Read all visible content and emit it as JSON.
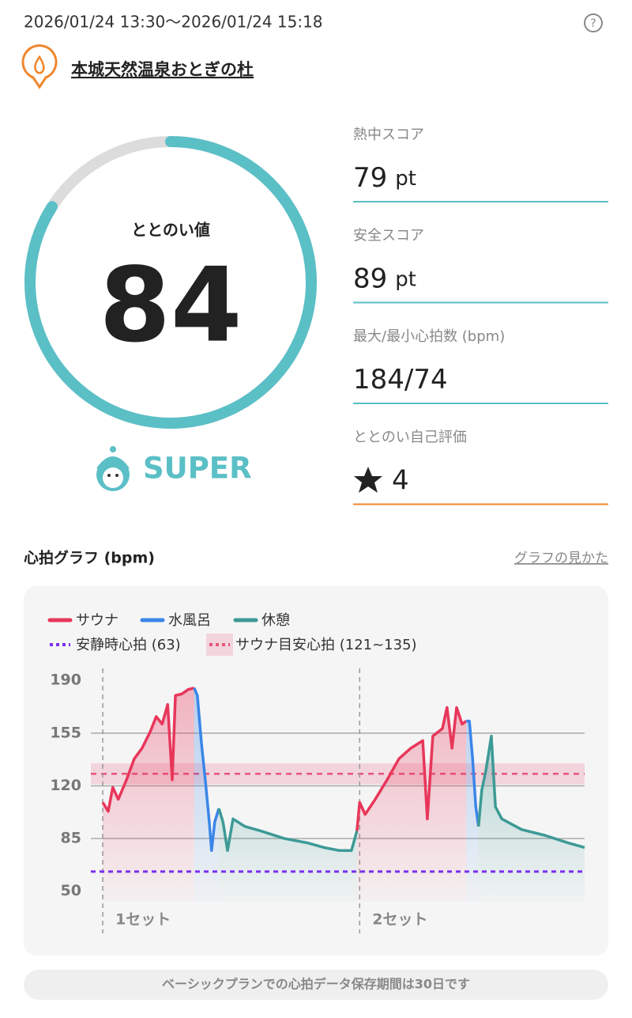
{
  "header": {
    "period": "2026/01/24 13:30〜2026/01/24 15:18",
    "place": "本城天然温泉おとぎの杜"
  },
  "gauge": {
    "label": "ととのい値",
    "value": 84,
    "rank": "SUPER"
  },
  "scores": [
    {
      "label": "熱中スコア",
      "value": 79,
      "unit": "pt"
    },
    {
      "label": "安全スコア",
      "value": 89,
      "unit": "pt"
    },
    {
      "label": "最大/最小心拍数 (bpm)",
      "value": "184/74"
    },
    {
      "label": "ととのい自己評価",
      "value": 4
    }
  ],
  "graph": {
    "title": "心拍グラフ (bpm)",
    "link": "グラフの見かた"
  },
  "chart_data": {
    "type": "line",
    "xlim": [
      0,
      108
    ],
    "ylim": [
      43,
      198
    ],
    "yticks": [
      50,
      85,
      120,
      155,
      190
    ],
    "grid": true,
    "series": [
      {
        "name": "サウナ",
        "color": "#e8365a",
        "x": [
          2.6,
          3.8,
          4.8,
          6.0,
          7.8,
          9.5,
          11.2,
          13.0,
          14.3,
          15.6,
          16.8,
          17.8,
          18.5,
          19.9,
          21.3,
          22.6,
          null,
          58.2,
          58.8,
          60.0,
          62.2,
          64.8,
          67.4,
          70.0,
          72.6,
          73.6,
          74.8,
          76.9,
          77.9,
          79.0,
          80.0,
          81.2,
          82.1
        ],
        "values": [
          109,
          103,
          119,
          111,
          124,
          138,
          145,
          156,
          166,
          161,
          174,
          124,
          180,
          181,
          184,
          185,
          null,
          90,
          109,
          101,
          111,
          124,
          138,
          145,
          150,
          98,
          153,
          158,
          172,
          145,
          172,
          161,
          163
        ]
      },
      {
        "name": "水風呂",
        "color": "#3a86e8",
        "x": [
          22.6,
          23.3,
          24.2,
          25.1,
          25.9,
          26.4,
          27.1,
          28.0,
          null,
          82.1,
          82.8,
          83.5,
          84.2,
          84.8
        ],
        "values": [
          185,
          180,
          148,
          122,
          96,
          77,
          96,
          105,
          null,
          163,
          163,
          138,
          106,
          93
        ]
      },
      {
        "name": "休憩",
        "color": "#3d9a96",
        "x": [
          28.0,
          28.9,
          29.9,
          31.1,
          33.7,
          37.2,
          42.3,
          47.5,
          51.0,
          54.4,
          57.0,
          58.2,
          null,
          84.8,
          85.5,
          86.4,
          87.6,
          88.5,
          89.9,
          94.2,
          99.4,
          104.5,
          108.0
        ],
        "values": [
          105,
          96,
          77,
          98,
          93,
          90,
          85,
          82,
          79,
          77,
          77,
          90,
          null,
          93,
          117,
          130,
          153,
          106,
          98,
          91,
          87,
          82,
          79
        ]
      }
    ],
    "references": [
      {
        "name": "安静時心拍 (63)",
        "value": 63,
        "color": "#7b2ff0"
      },
      {
        "name": "サウナ目安心拍 (121~135)",
        "range": [
          121,
          135
        ],
        "color": "#e7547a"
      }
    ],
    "sets": [
      {
        "label": "1セット",
        "x": 2.6
      },
      {
        "label": "2セット",
        "x": 58.8
      }
    ]
  },
  "footer": "ベーシックプランでの心拍データ保存期間は30日です"
}
